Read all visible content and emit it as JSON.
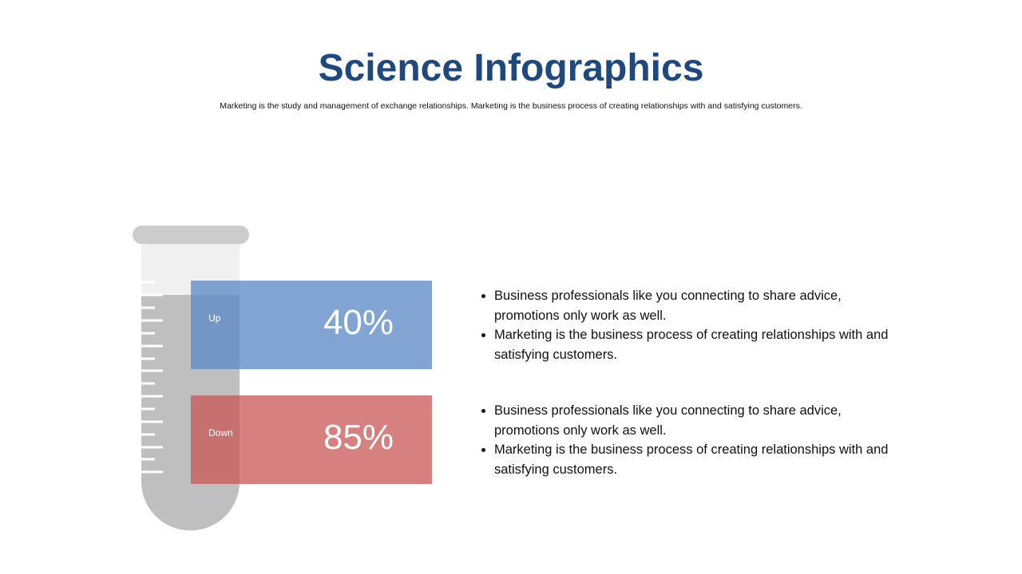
{
  "header": {
    "title": "Science Infographics",
    "subtitle": "Marketing is the study and management of exchange relationships. Marketing is the business process of creating relationships with and satisfying customers."
  },
  "items": [
    {
      "label": "Up",
      "value": "40%",
      "bullets": [
        "Business professionals like you connecting to share advice, promotions only work as well.",
        "Marketing is the business process of creating relationships with and satisfying customers."
      ]
    },
    {
      "label": "Down",
      "value": "85%",
      "bullets": [
        "Business professionals like you connecting to share advice, promotions only work as well.",
        "Marketing is the business process of creating relationships with and satisfying customers."
      ]
    }
  ]
}
